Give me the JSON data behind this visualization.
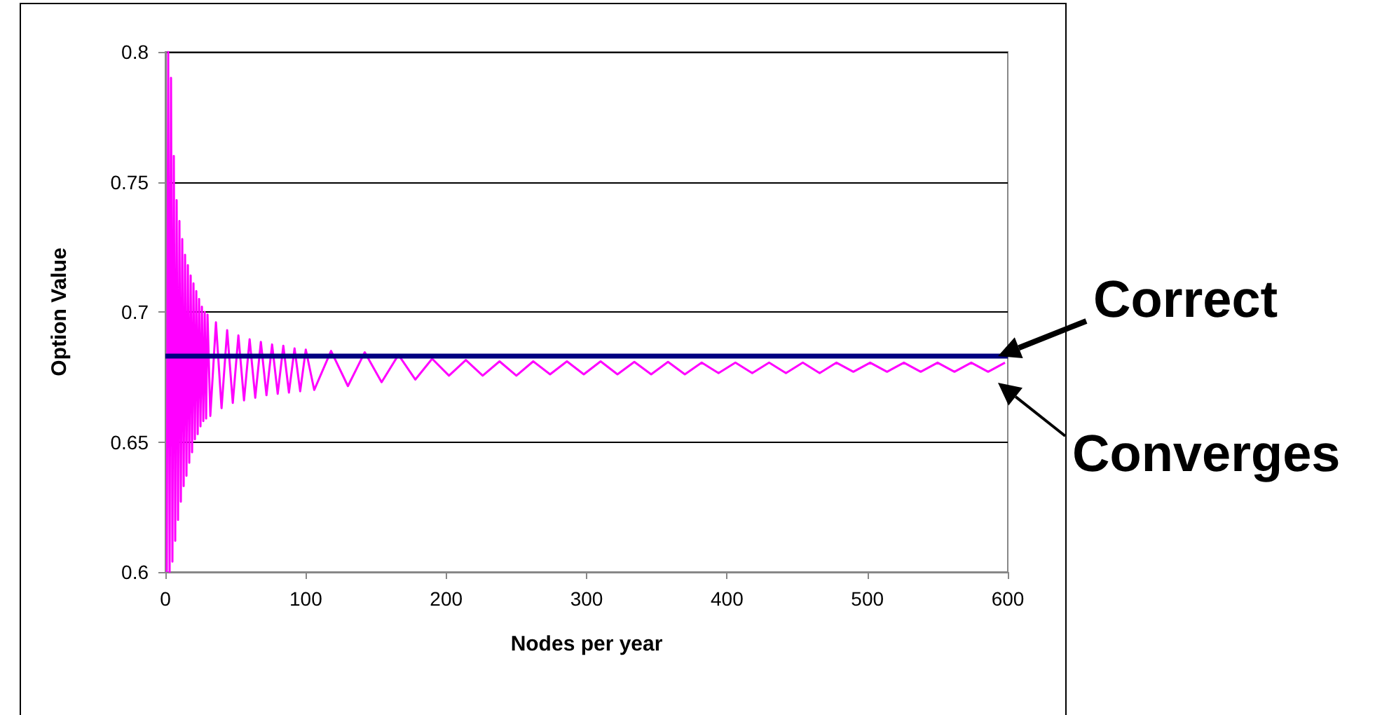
{
  "chart_data": {
    "type": "line",
    "xlabel": "Nodes per year",
    "ylabel": "Option Value",
    "x": [
      1,
      2,
      3,
      4,
      5,
      6,
      7,
      8,
      9,
      10,
      11,
      12,
      13,
      14,
      15,
      16,
      17,
      18,
      19,
      20,
      21,
      22,
      23,
      24,
      25,
      26,
      27,
      28,
      29,
      30,
      32,
      36,
      40,
      44,
      48,
      52,
      56,
      60,
      64,
      68,
      72,
      76,
      80,
      84,
      88,
      92,
      96,
      100,
      106,
      118,
      130,
      142,
      154,
      166,
      178,
      190,
      202,
      214,
      226,
      238,
      250,
      262,
      274,
      286,
      298,
      310,
      322,
      334,
      346,
      358,
      370,
      382,
      394,
      406,
      418,
      430,
      442,
      454,
      466,
      478,
      490,
      502,
      514,
      526,
      538,
      550,
      562,
      574,
      586,
      598
    ],
    "series": [
      {
        "color": "#ff00ff",
        "values": [
          0.6,
          0.8,
          0.6,
          0.79,
          0.604,
          0.76,
          0.612,
          0.743,
          0.62,
          0.735,
          0.627,
          0.728,
          0.633,
          0.722,
          0.637,
          0.718,
          0.642,
          0.714,
          0.646,
          0.711,
          0.651,
          0.708,
          0.653,
          0.705,
          0.656,
          0.702,
          0.658,
          0.7,
          0.659,
          0.699,
          0.66,
          0.696,
          0.663,
          0.693,
          0.665,
          0.691,
          0.666,
          0.6895,
          0.667,
          0.6885,
          0.668,
          0.6875,
          0.6685,
          0.687,
          0.669,
          0.686,
          0.6695,
          0.6855,
          0.67,
          0.685,
          0.6715,
          0.6845,
          0.673,
          0.6835,
          0.674,
          0.682,
          0.6755,
          0.6815,
          0.6755,
          0.681,
          0.6755,
          0.681,
          0.676,
          0.681,
          0.676,
          0.681,
          0.676,
          0.6808,
          0.676,
          0.6808,
          0.676,
          0.6805,
          0.6765,
          0.6805,
          0.6765,
          0.6805,
          0.6765,
          0.6805,
          0.6765,
          0.6805,
          0.677,
          0.6805,
          0.677,
          0.6805,
          0.677,
          0.6805,
          0.677,
          0.6805,
          0.677,
          0.6805
        ]
      }
    ],
    "ref_lines": [
      {
        "axis": "y",
        "value": 0.683,
        "label": "Correct",
        "color": "#000080"
      }
    ],
    "annotations": [
      "Converges"
    ],
    "xlim": [
      0,
      600
    ],
    "xticks": [
      0,
      100,
      200,
      300,
      400,
      500,
      600
    ],
    "ylim": [
      0.6,
      0.8
    ],
    "yticks": [
      0.6,
      0.65,
      0.7,
      0.75,
      0.8
    ],
    "grid": "y",
    "marker": "none",
    "line_style": "solid"
  }
}
